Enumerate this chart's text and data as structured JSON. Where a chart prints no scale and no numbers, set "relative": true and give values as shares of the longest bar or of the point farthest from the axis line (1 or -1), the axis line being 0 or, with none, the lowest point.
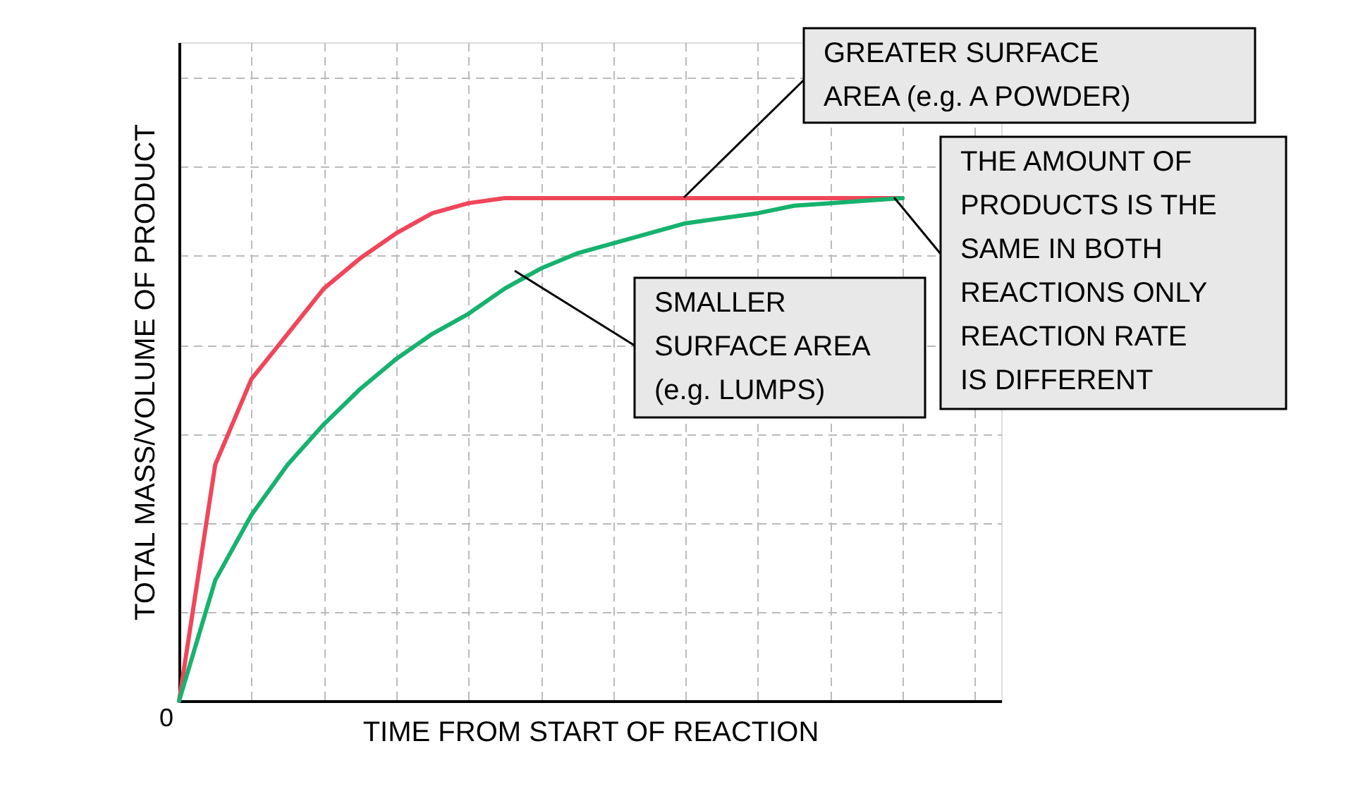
{
  "chart_data": {
    "type": "line",
    "relative": true,
    "xlabel": "TIME FROM START OF REACTION",
    "ylabel": "TOTAL MASS/VOLUME OF PRODUCT",
    "grid": true,
    "line_style": "solid",
    "marker": "none",
    "categories": [
      null,
      null,
      null,
      null,
      null,
      null,
      null,
      null,
      null,
      null,
      null,
      null,
      null,
      null,
      null,
      null,
      null,
      null,
      null,
      null,
      null
    ],
    "series": [
      {
        "color": "#f0465a",
        "values": [
          0,
          0.47,
          0.64,
          0.73,
          0.82,
          0.88,
          0.93,
          0.97,
          0.99,
          1,
          1,
          1,
          1,
          1,
          1,
          1,
          1,
          1,
          1,
          1,
          1
        ]
      },
      {
        "color": "#16b26e",
        "values": [
          0,
          0.24,
          0.37,
          0.47,
          0.55,
          0.62,
          0.68,
          0.73,
          0.77,
          0.82,
          0.86,
          0.89,
          0.91,
          0.93,
          0.95,
          0.96,
          0.97,
          0.985,
          0.99,
          0.995,
          1
        ]
      }
    ],
    "annotations": [
      "0",
      "GREATER SURFACE\nAREA (e.g. A POWDER)",
      "THE AMOUNT OF\nPRODUCTS IS THE\nSAME IN BOTH\nREACTIONS ONLY\nREACTION RATE\nIS DIFFERENT",
      "SMALLER\nSURFACE AREA\n(e.g. LUMPS)"
    ]
  }
}
